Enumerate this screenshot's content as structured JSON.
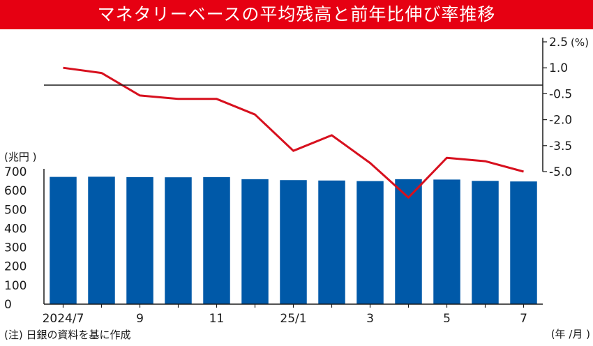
{
  "title": "マネタリーベースの平均残高と前年比伸び率推移",
  "note": "(注) 日銀の資料を基に作成",
  "colors": {
    "title_bg": "#e60012",
    "bar": "#0059a8",
    "line": "#d7101e",
    "axis": "#1a1a1a"
  },
  "chart_data": {
    "type": "bar+line",
    "categories": [
      "2024/7",
      "2024/8",
      "2024/9",
      "2024/10",
      "2024/11",
      "2024/12",
      "2025/1",
      "2025/2",
      "2025/3",
      "2025/4",
      "2025/5",
      "2025/6",
      "2025/7"
    ],
    "x_tick_labels": [
      "2024/7",
      "",
      "9",
      "",
      "11",
      "",
      "25/1",
      "",
      "3",
      "",
      "5",
      "",
      "7"
    ],
    "x_unit_label": "(年 /月 )",
    "bars": {
      "values": [
        672,
        673,
        671,
        670,
        671,
        660,
        655,
        653,
        650,
        660,
        658,
        651,
        648
      ],
      "axis": "left",
      "unit_label": "(兆円 )",
      "ylim": [
        0,
        700
      ],
      "ticks": [
        "0",
        "100",
        "200",
        "300",
        "400",
        "500",
        "600",
        "700"
      ]
    },
    "line": {
      "values": [
        1.0,
        0.7,
        -0.6,
        -0.8,
        -0.8,
        -1.7,
        -3.8,
        -2.9,
        -4.5,
        -6.5,
        -4.2,
        -4.4,
        -5.0
      ],
      "axis": "right",
      "unit_label": "(%)",
      "ylim": [
        -5.0,
        2.5
      ],
      "ticks": [
        "2.5",
        "1.0",
        "-0.5",
        "-2.0",
        "-3.5",
        "-5.0"
      ],
      "zero_line": true
    }
  }
}
